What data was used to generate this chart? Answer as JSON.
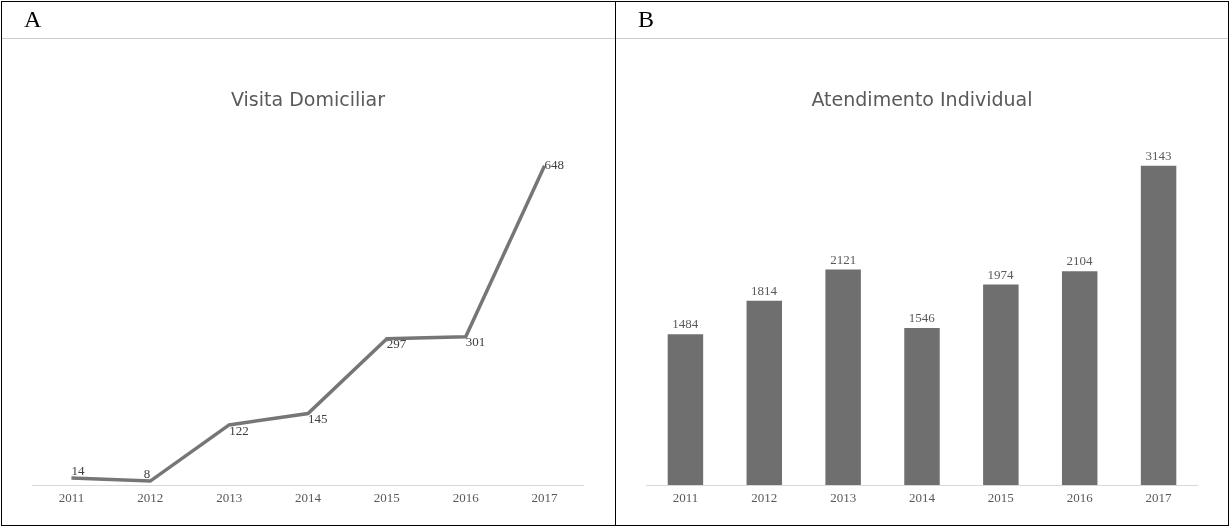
{
  "chart_data": [
    {
      "type": "line",
      "title": "Visita Domiciliar",
      "annotations": [
        "A"
      ],
      "categories": [
        "2011",
        "2012",
        "2013",
        "2014",
        "2015",
        "2016",
        "2017"
      ],
      "series": [
        {
          "color": "#767676",
          "values": [
            14,
            8,
            122,
            145,
            297,
            301,
            648
          ]
        }
      ],
      "data_labels": true,
      "grid": false,
      "legend": false,
      "marker": "none",
      "line_style": "solid"
    },
    {
      "type": "bar",
      "title": "Atendimento Individual",
      "annotations": [
        "B"
      ],
      "categories": [
        "2011",
        "2012",
        "2013",
        "2014",
        "2015",
        "2016",
        "2017"
      ],
      "series": [
        {
          "color": "#6f6f6f",
          "values": [
            1484,
            1814,
            2121,
            1546,
            1974,
            2104,
            3143
          ]
        }
      ],
      "data_labels": true,
      "grid": false,
      "legend": false
    }
  ]
}
